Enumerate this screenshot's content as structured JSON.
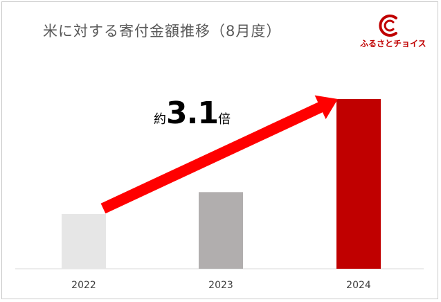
{
  "title": "米に対する寄付金額推移（8月度）",
  "logo": {
    "text": "ふるさとチョイス",
    "icon": "choice-logo-icon",
    "color": "#c00000"
  },
  "annotation": {
    "prefix": "約",
    "value": "3.1",
    "suffix": "倍"
  },
  "chart_data": {
    "type": "bar",
    "title": "米に対する寄付金額推移（8月度）",
    "categories": [
      "2022",
      "2023",
      "2024"
    ],
    "values": [
      1.0,
      1.4,
      3.1
    ],
    "value_unit": "relative (2022 = 1)",
    "colors": [
      "#e6e6e6",
      "#b1aeae",
      "#c00000"
    ],
    "xlabel": "",
    "ylabel": "",
    "grid": false,
    "legend": "none",
    "arrow": {
      "from": "2022",
      "to": "2024",
      "color": "#ff0000"
    }
  }
}
